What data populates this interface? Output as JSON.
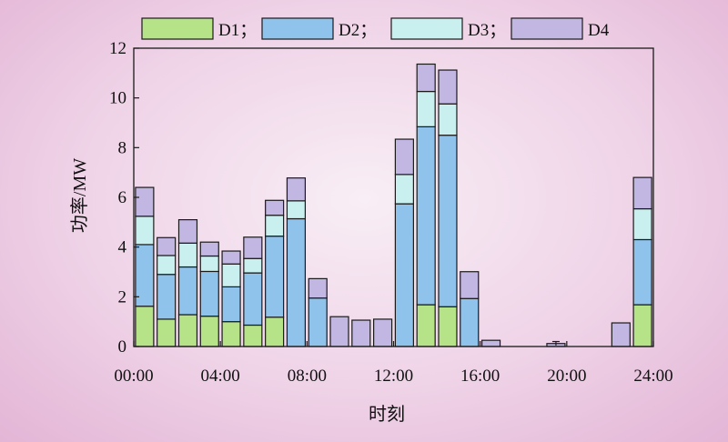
{
  "chart_data": {
    "type": "bar",
    "stacked": true,
    "xlabel": "时刻",
    "ylabel": "功率/MW",
    "ylim": [
      0,
      12
    ],
    "yticks": [
      0,
      2,
      4,
      6,
      8,
      10,
      12
    ],
    "xlim": [
      0,
      24
    ],
    "xticks": [
      "00:00",
      "04:00",
      "08:00",
      "12:00",
      "16:00",
      "20:00",
      "24:00"
    ],
    "legend_position": "top",
    "grid": false,
    "hours": [
      1,
      2,
      3,
      4,
      5,
      6,
      7,
      8,
      9,
      10,
      11,
      12,
      13,
      14,
      15,
      16,
      17,
      18,
      19,
      20,
      21,
      22,
      23,
      24
    ],
    "series": [
      {
        "name": "D1",
        "legend_label": "D1；",
        "color": "#b6e388",
        "values": [
          1.62,
          1.1,
          1.28,
          1.22,
          1.0,
          0.86,
          1.18,
          0,
          0,
          0,
          0,
          0,
          0,
          1.68,
          1.6,
          0,
          0,
          0,
          0,
          0,
          0,
          0,
          0,
          1.68
        ]
      },
      {
        "name": "D2",
        "legend_label": "D2；",
        "color": "#8fc3ec",
        "values": [
          2.48,
          1.8,
          1.92,
          1.8,
          1.4,
          2.1,
          3.26,
          5.14,
          1.95,
          0,
          0,
          0,
          5.74,
          7.16,
          6.9,
          1.93,
          0,
          0,
          0,
          0,
          0,
          0,
          0,
          2.62
        ]
      },
      {
        "name": "D3",
        "legend_label": "D3；",
        "color": "#c9f0ee",
        "values": [
          1.14,
          0.76,
          0.96,
          0.62,
          0.92,
          0.58,
          0.84,
          0.72,
          0,
          0,
          0,
          0,
          1.18,
          1.42,
          1.26,
          0,
          0,
          0,
          0,
          0,
          0,
          0,
          0,
          1.24
        ]
      },
      {
        "name": "D4",
        "legend_label": "D4",
        "color": "#c2b6e2",
        "values": [
          1.16,
          0.72,
          0.94,
          0.56,
          0.52,
          0.86,
          0.6,
          0.92,
          0.78,
          1.2,
          1.06,
          1.1,
          1.42,
          1.1,
          1.36,
          1.08,
          0.25,
          0,
          0,
          0.12,
          0,
          0,
          0.95,
          1.26
        ]
      }
    ],
    "errorbar": {
      "hour": 20,
      "value": 0.12,
      "delta": 0.08
    }
  }
}
